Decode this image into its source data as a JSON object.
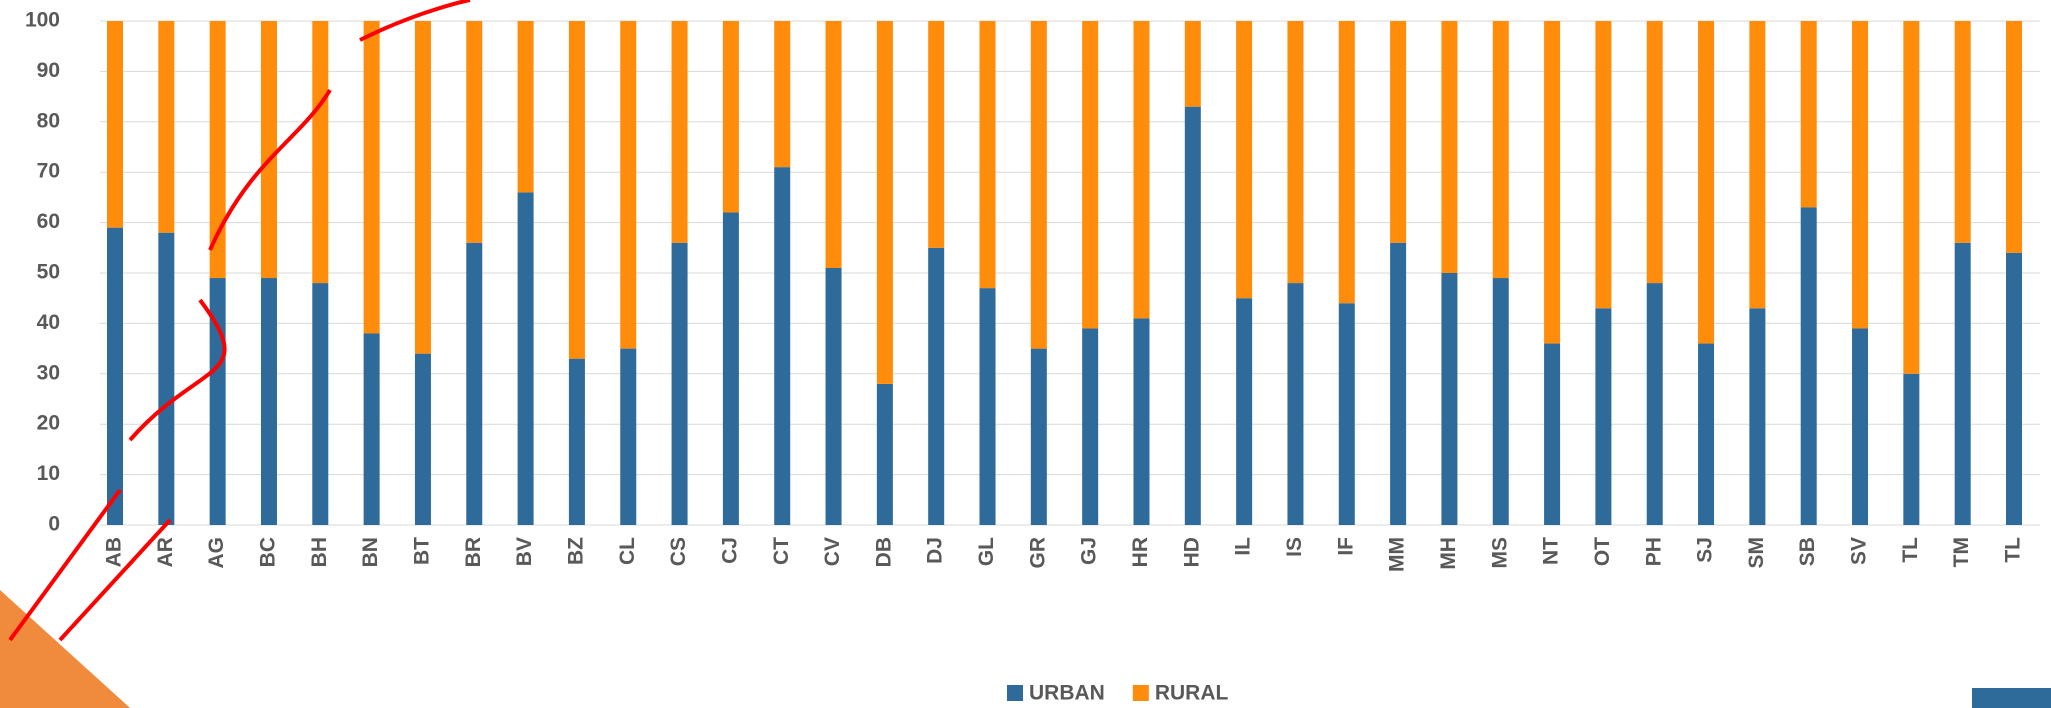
{
  "chart_data": {
    "type": "stacked_bar",
    "categories": [
      "AB",
      "AR",
      "AG",
      "BC",
      "BH",
      "BN",
      "BT",
      "BR",
      "BV",
      "BZ",
      "CL",
      "CS",
      "CJ",
      "CT",
      "CV",
      "DB",
      "DJ",
      "GL",
      "GR",
      "GJ",
      "HR",
      "HD",
      "IL",
      "IS",
      "IF",
      "MM",
      "MH",
      "MS",
      "NT",
      "OT",
      "PH",
      "SJ",
      "SM",
      "SB",
      "SV",
      "TL",
      "TM",
      "TL"
    ],
    "series": [
      {
        "name": "URBAN",
        "color": "#2e6a9a",
        "values": [
          59,
          58,
          49,
          49,
          48,
          38,
          34,
          56,
          66,
          33,
          35,
          56,
          62,
          71,
          51,
          28,
          55,
          47,
          35,
          39,
          41,
          83,
          45,
          48,
          44,
          56,
          50,
          49,
          36,
          43,
          48,
          36,
          43,
          63,
          39,
          30,
          56,
          54
        ]
      },
      {
        "name": "RURAL",
        "color": "#ff8c0a",
        "values": [
          41,
          42,
          51,
          51,
          52,
          62,
          66,
          44,
          34,
          67,
          65,
          44,
          38,
          29,
          49,
          72,
          45,
          53,
          65,
          61,
          59,
          17,
          55,
          52,
          56,
          44,
          50,
          51,
          64,
          57,
          52,
          64,
          57,
          37,
          61,
          70,
          44,
          46
        ]
      }
    ],
    "ylim": [
      0,
      100
    ],
    "yticks": [
      0,
      10,
      20,
      30,
      40,
      50,
      60,
      70,
      80,
      90,
      100
    ],
    "grid": true,
    "legend": "bottom"
  }
}
